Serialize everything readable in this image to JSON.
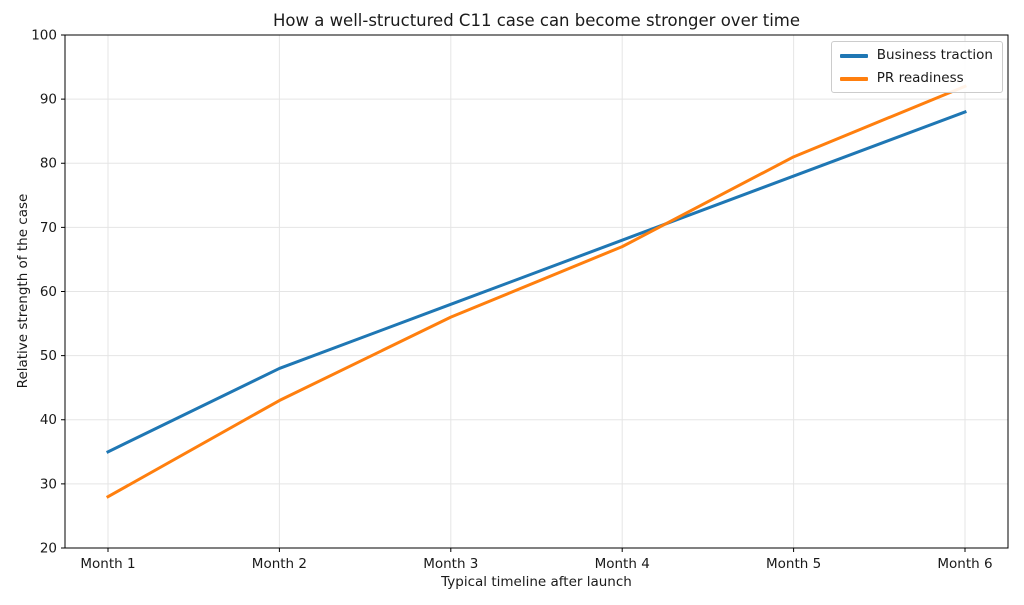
{
  "figure": {
    "title": "How a well-structured C11 case can become stronger over time"
  },
  "chart_data": {
    "type": "line",
    "title": "How a well-structured C11 case can become stronger over time",
    "xlabel": "Typical timeline after launch",
    "ylabel": "Relative strength of the case",
    "categories": [
      "Month 1",
      "Month 2",
      "Month 3",
      "Month 4",
      "Month 5",
      "Month 6"
    ],
    "series": [
      {
        "name": "Business traction",
        "color": "#1f77b4",
        "values": [
          35,
          48,
          58,
          68,
          78,
          88
        ]
      },
      {
        "name": "PR readiness",
        "color": "#ff7f0e",
        "values": [
          28,
          43,
          56,
          67,
          81,
          92
        ]
      }
    ],
    "ylim": [
      20,
      100
    ],
    "yticks": [
      20,
      30,
      40,
      50,
      60,
      70,
      80,
      90,
      100
    ],
    "grid": true,
    "legend_position": "upper right",
    "line_width": 3,
    "spine_color": "#000000",
    "grid_color": "#e5e5e5"
  }
}
